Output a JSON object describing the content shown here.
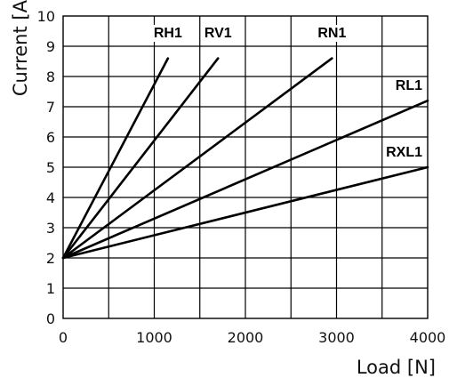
{
  "chart_data": {
    "type": "line",
    "title": "",
    "xlabel": "Load [N]",
    "ylabel": "Current [A]",
    "xlim": [
      0,
      4000
    ],
    "ylim": [
      0,
      10
    ],
    "x_ticks": [
      0,
      1000,
      2000,
      3000,
      4000
    ],
    "y_ticks": [
      0,
      1,
      2,
      3,
      4,
      5,
      6,
      7,
      8,
      9,
      10
    ],
    "x_minor_step": 500,
    "grid": true,
    "line_color": "#000000",
    "series": [
      {
        "name": "RH1",
        "x": [
          0,
          1150
        ],
        "y": [
          2,
          8.6
        ]
      },
      {
        "name": "RV1",
        "x": [
          0,
          1700
        ],
        "y": [
          2,
          8.6
        ]
      },
      {
        "name": "RN1",
        "x": [
          0,
          2950
        ],
        "y": [
          2,
          8.6
        ]
      },
      {
        "name": "RL1",
        "x": [
          0,
          4000
        ],
        "y": [
          2,
          7.2
        ]
      },
      {
        "name": "RXL1",
        "x": [
          0,
          4000
        ],
        "y": [
          2,
          5.0
        ]
      }
    ]
  }
}
